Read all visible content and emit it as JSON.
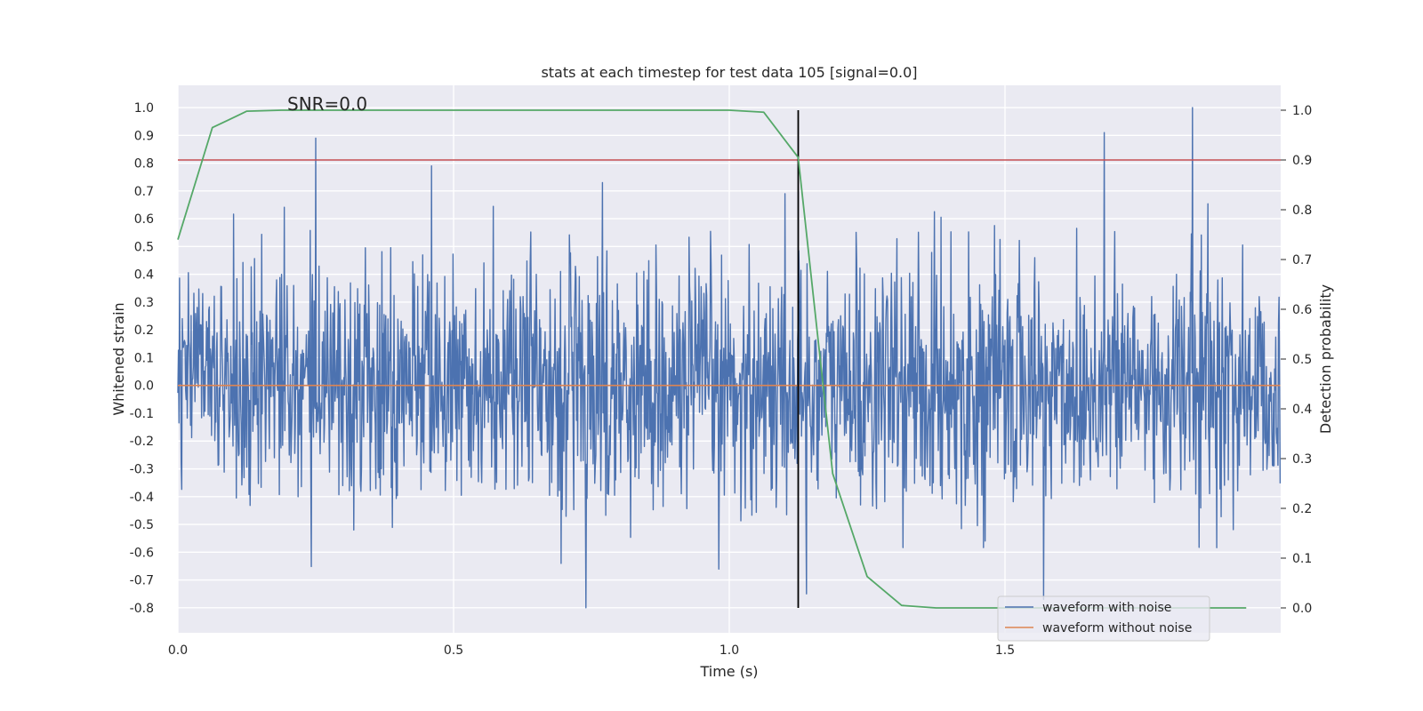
{
  "chart_data": {
    "type": "line",
    "title": "stats at each timestep for test data 105 [signal=0.0]",
    "xlabel": "Time (s)",
    "ylabel": "Whitened strain",
    "y2label": "Detection probability",
    "annotation": "SNR=0.0",
    "xlim": [
      0.0,
      2.0
    ],
    "ylim": [
      -0.89,
      1.08
    ],
    "y2lim": [
      -0.05,
      1.05
    ],
    "xticks": [
      "0.0",
      "0.5",
      "1.0",
      "1.5"
    ],
    "xtick_values": [
      0.0,
      0.5,
      1.0,
      1.5
    ],
    "yticks": [
      "-0.8",
      "-0.7",
      "-0.6",
      "-0.5",
      "-0.4",
      "-0.3",
      "-0.2",
      "-0.1",
      "0.0",
      "0.1",
      "0.2",
      "0.3",
      "0.4",
      "0.5",
      "0.6",
      "0.7",
      "0.8",
      "0.9",
      "1.0"
    ],
    "ytick_values": [
      -0.8,
      -0.7,
      -0.6,
      -0.5,
      -0.4,
      -0.3,
      -0.2,
      -0.1,
      0.0,
      0.1,
      0.2,
      0.3,
      0.4,
      0.5,
      0.6,
      0.7,
      0.8,
      0.9,
      1.0
    ],
    "y2ticks": [
      "0.0",
      "0.1",
      "0.2",
      "0.3",
      "0.4",
      "0.5",
      "0.6",
      "0.7",
      "0.8",
      "0.9",
      "1.0"
    ],
    "y2tick_values": [
      0.0,
      0.1,
      0.2,
      0.3,
      0.4,
      0.5,
      0.6,
      0.7,
      0.8,
      0.9,
      1.0
    ],
    "grid": true,
    "legend_position": "bottom-right",
    "series": [
      {
        "name": "waveform with noise",
        "color": "#4c72b0",
        "noise": {
          "sample_count": 2000,
          "x_start": 0.0,
          "x_end": 1.999,
          "amplitude_std": 0.22,
          "min": -0.8,
          "max": 1.0,
          "peaks": [
            {
              "x": 0.25,
              "y": 0.89
            },
            {
              "x": 0.46,
              "y": 0.79
            },
            {
              "x": 0.77,
              "y": 0.73
            },
            {
              "x": 1.68,
              "y": 0.91
            },
            {
              "x": 1.84,
              "y": 1.0
            },
            {
              "x": 0.74,
              "y": -0.8
            },
            {
              "x": 1.57,
              "y": -0.77
            },
            {
              "x": 1.14,
              "y": -0.75
            }
          ]
        }
      },
      {
        "name": "waveform without noise",
        "color": "#dd8452",
        "x": [
          0.0,
          1.999
        ],
        "y": [
          0.0,
          0.0
        ]
      },
      {
        "name": "",
        "axis": "y2",
        "color": "#55a868",
        "x": [
          0.0,
          0.0625,
          0.125,
          0.1875,
          0.25,
          0.3125,
          0.375,
          0.4375,
          0.5,
          0.5625,
          0.625,
          0.6875,
          0.75,
          0.8125,
          0.875,
          0.9375,
          1.0,
          1.0625,
          1.125,
          1.1875,
          1.25,
          1.3125,
          1.375,
          1.4375,
          1.5,
          1.5625,
          1.625,
          1.6875,
          1.75,
          1.8125,
          1.875,
          1.9375
        ],
        "y": [
          0.74,
          0.965,
          0.998,
          1.0,
          1.0,
          1.0,
          1.0,
          1.0,
          1.0,
          1.0,
          1.0,
          1.0,
          1.0,
          1.0,
          1.0,
          1.0,
          1.0,
          0.996,
          0.905,
          0.27,
          0.063,
          0.005,
          0.0,
          0.0,
          0.0,
          0.0,
          0.0,
          0.0,
          0.0,
          0.0,
          0.0,
          0.0
        ]
      }
    ],
    "reference_lines": [
      {
        "orientation": "horizontal",
        "axis": "y2",
        "value": 0.9,
        "color": "#c44e52"
      },
      {
        "orientation": "vertical",
        "value": 1.125,
        "ymin": 0.0,
        "ymax": 1.0,
        "axis": "y2",
        "color": "#000000"
      }
    ]
  }
}
